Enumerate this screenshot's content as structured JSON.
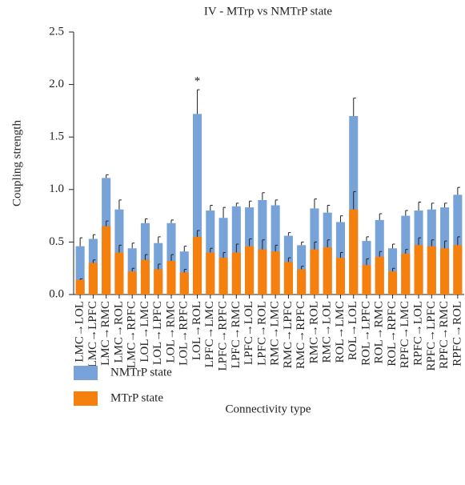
{
  "chart_data": {
    "type": "bar",
    "title": "IV - MTrp vs NMTrP state",
    "x_label": "Connectivity type",
    "y_label": "Coupling strength",
    "categories": [
      "LMC→LOL",
      "LMC→LPFC",
      "LMC→RMC",
      "LMC→ROL",
      "LMC→RPFC",
      "LOL→LMC",
      "LOL→LPFC",
      "LOL→RMC",
      "LOL→RPFC",
      "LOL→ROL",
      "LPFC→LMC",
      "LPFC→RPFC",
      "LPFC→RMC",
      "LPFC→LOL",
      "LPFC→ROL",
      "RMC→LMC",
      "RMC→LPFC",
      "RMC→RPFC",
      "RMC→ROL",
      "RMC→LOL",
      "ROL→LMC",
      "ROL→LOL",
      "ROL→LPFC",
      "ROL→RMC",
      "ROL→RPFC",
      "RPFC→LMC",
      "RPFC→LOL",
      "RPFC→LPFC",
      "RPFC→RMC",
      "RPFC→ROL"
    ],
    "series": [
      {
        "name": "NMTrP state",
        "color": "#78a3d8",
        "values": [
          0.46,
          0.53,
          1.11,
          0.81,
          0.44,
          0.68,
          0.49,
          0.68,
          0.41,
          1.72,
          0.8,
          0.73,
          0.84,
          0.83,
          0.9,
          0.85,
          0.56,
          0.47,
          0.82,
          0.78,
          0.69,
          1.7,
          0.51,
          0.71,
          0.44,
          0.75,
          0.8,
          0.81,
          0.83,
          0.95
        ],
        "errors": [
          0.08,
          0.04,
          0.03,
          0.09,
          0.05,
          0.04,
          0.06,
          0.03,
          0.05,
          0.23,
          0.05,
          0.1,
          0.03,
          0.06,
          0.07,
          0.05,
          0.03,
          0.03,
          0.09,
          0.07,
          0.06,
          0.17,
          0.04,
          0.06,
          0.04,
          0.05,
          0.08,
          0.06,
          0.04,
          0.07
        ]
      },
      {
        "name": "MTrP state",
        "color": "#f5800e",
        "values": [
          0.14,
          0.3,
          0.65,
          0.4,
          0.22,
          0.33,
          0.24,
          0.32,
          0.21,
          0.55,
          0.4,
          0.35,
          0.4,
          0.46,
          0.43,
          0.41,
          0.31,
          0.24,
          0.43,
          0.45,
          0.35,
          0.81,
          0.28,
          0.36,
          0.22,
          0.39,
          0.47,
          0.46,
          0.44,
          0.47
        ],
        "errors": [
          0.01,
          0.03,
          0.05,
          0.07,
          0.03,
          0.05,
          0.05,
          0.06,
          0.03,
          0.06,
          0.04,
          0.05,
          0.08,
          0.07,
          0.09,
          0.06,
          0.04,
          0.03,
          0.07,
          0.07,
          0.05,
          0.17,
          0.06,
          0.05,
          0.03,
          0.04,
          0.07,
          0.06,
          0.07,
          0.08
        ]
      }
    ],
    "annotations": [
      {
        "text": "*",
        "category": "LOL→ROL"
      }
    ],
    "ylim": [
      0,
      2.5
    ],
    "yticks": [
      {
        "value": 0,
        "label": "0.0"
      },
      0.5,
      {
        "value": 1,
        "label": "1.0"
      },
      1.5,
      {
        "value": 2,
        "label": "2.0"
      },
      2.5
    ],
    "grid": false
  }
}
